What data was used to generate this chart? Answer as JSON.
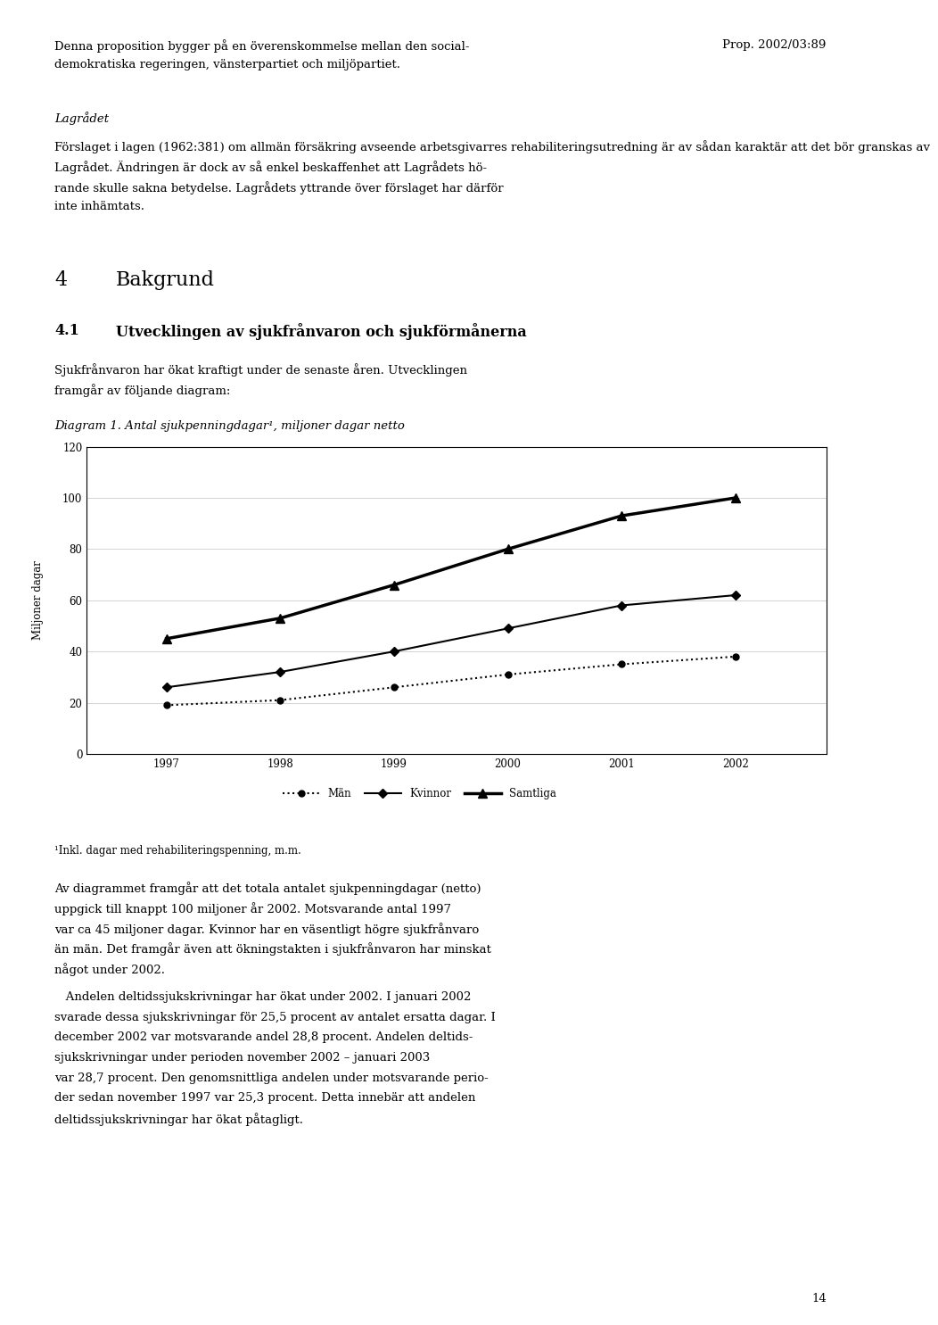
{
  "page_width": 9.6,
  "page_height": 14.65,
  "bg_color": "#ffffff",
  "text_color": "#000000",
  "body_fontsize": 9.5,
  "section4_fontsize": 16.0,
  "section41_fontsize": 11.5,
  "diagram_title": "Diagram 1. Antal sjukpenningdagar¹, miljoner dagar netto",
  "chart_ylabel": "Miljoner dagar",
  "chart_ylim": [
    0,
    120
  ],
  "chart_yticks": [
    0,
    20,
    40,
    60,
    80,
    100,
    120
  ],
  "chart_years": [
    1997,
    1998,
    1999,
    2000,
    2001,
    2002
  ],
  "man_values": [
    19,
    21,
    26,
    31,
    35,
    38
  ],
  "kvinnor_values": [
    26,
    32,
    40,
    49,
    58,
    62
  ],
  "samtliga_values": [
    45,
    53,
    66,
    80,
    93,
    100
  ],
  "footnote": "¹Inkl. dagar med rehabiliteringspenning, m.m.",
  "page_number": "14",
  "header_line1": "Denna proposition bygger på en överenskommelse mellan den social-",
  "header_line2": "demokratiska regeringen, vänsterpartiet och miljöpartiet.",
  "header_right": "Prop. 2002/03:89",
  "lagr_title": "Lagrådet",
  "lagr_lines": [
    "Förslaget i lagen (1962:381) om allmän försäkring avseende arbetsgivarres rehabiliteringsutredning är av sådan karaktär att det bör granskas av",
    "Lagrådet. Ändringen är dock av så enkel beskaffenhet att Lagrådets hö-",
    "rande skulle sakna betydelse. Lagrådets yttrande över förslaget har därför",
    "inte inhämtats."
  ],
  "sec4_num": "4",
  "sec4_title": "Bakgrund",
  "sec41_num": "4.1",
  "sec41_title": "Utvecklingen av sjukfrånvaron och sjukförmånerna",
  "para_before": [
    "Sjukfrånvaron har ökat kraftigt under de senaste åren. Utvecklingen",
    "framgår av följande diagram:"
  ],
  "para_after1": [
    "Av diagrammet framgår att det totala antalet sjukpenningdagar (netto)",
    "uppgick till knappt 100 miljoner år 2002. Motsvarande antal 1997",
    "var ca 45 miljoner dagar. Kvinnor har en väsentligt högre sjukfrånvaro",
    "än män. Det framgår även att ökningstakten i sjukfrånvaron har minskat",
    "något under 2002."
  ],
  "para_after2": [
    "   Andelen deltidssjukskrivningar har ökat under 2002. I januari 2002",
    "svarade dessa sjukskrivningar för 25,5 procent av antalet ersatta dagar. I",
    "december 2002 var motsvarande andel 28,8 procent. Andelen deltids-",
    "sjukskrivningar under perioden november 2002 – januari 2003",
    "var 28,7 procent. Den genomsnittliga andelen under motsvarande perio-",
    "der sedan november 1997 var 25,3 procent. Detta innebär att andelen",
    "deltidssjukskrivningar har ökat påtagligt."
  ]
}
